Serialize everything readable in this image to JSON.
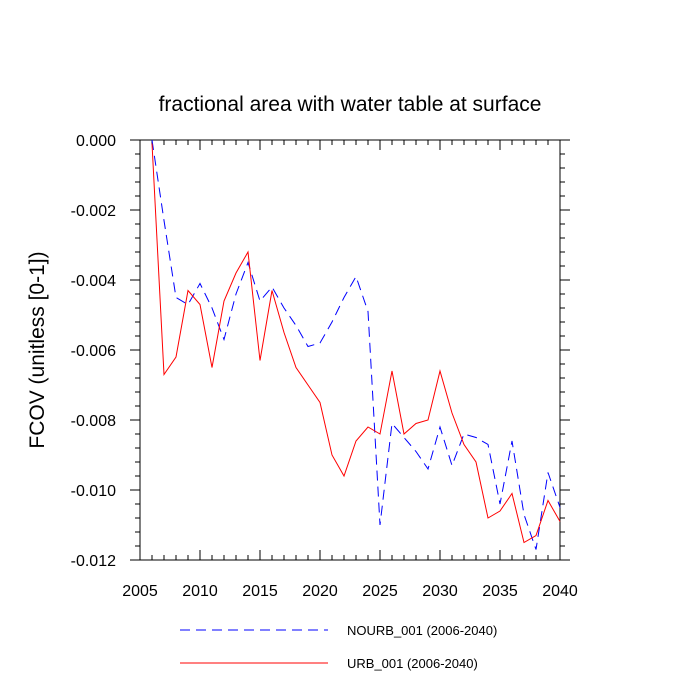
{
  "chart_data": {
    "type": "line",
    "title": "fractional area with water table at surface",
    "xlabel": "",
    "ylabel": "FCOV  (unitless [0-1])",
    "xlim": [
      2005,
      2040
    ],
    "ylim": [
      -0.012,
      0.0
    ],
    "x_ticks": [
      2005,
      2010,
      2015,
      2020,
      2025,
      2030,
      2035,
      2040
    ],
    "x_tick_labels": [
      "2005",
      "2010",
      "2015",
      "2020",
      "2025",
      "2030",
      "2035",
      "2040"
    ],
    "y_ticks": [
      0.0,
      -0.002,
      -0.004,
      -0.006,
      -0.008,
      -0.01,
      -0.012
    ],
    "y_tick_labels": [
      "0.000",
      "-0.002",
      "-0.004",
      "-0.006",
      "-0.008",
      "-0.010",
      "-0.012"
    ],
    "legend_position": "bottom",
    "x": [
      2006,
      2007,
      2008,
      2009,
      2010,
      2011,
      2012,
      2013,
      2014,
      2015,
      2016,
      2017,
      2018,
      2019,
      2020,
      2021,
      2022,
      2023,
      2024,
      2025,
      2026,
      2027,
      2028,
      2029,
      2030,
      2031,
      2032,
      2033,
      2034,
      2035,
      2036,
      2037,
      2038,
      2039,
      2040
    ],
    "series": [
      {
        "name": "NOURB_001 (2006-2040)",
        "color": "#0000ff",
        "style": "dashed",
        "values": [
          0.0,
          -0.0023,
          -0.0045,
          -0.0047,
          -0.0041,
          -0.0048,
          -0.0057,
          -0.0044,
          -0.0035,
          -0.0046,
          -0.0042,
          -0.0048,
          -0.0053,
          -0.0059,
          -0.0058,
          -0.0052,
          -0.0045,
          -0.0039,
          -0.0049,
          -0.011,
          -0.0081,
          -0.0085,
          -0.0089,
          -0.0094,
          -0.0082,
          -0.0093,
          -0.0084,
          -0.0085,
          -0.0087,
          -0.0104,
          -0.0086,
          -0.0107,
          -0.0117,
          -0.0095,
          -0.0105
        ]
      },
      {
        "name": "URB_001 (2006-2040)",
        "color": "#ff0000",
        "style": "solid",
        "values": [
          -0.0001,
          -0.0067,
          -0.0062,
          -0.0043,
          -0.0047,
          -0.0065,
          -0.0046,
          -0.0038,
          -0.0032,
          -0.0063,
          -0.0043,
          -0.0055,
          -0.0065,
          -0.007,
          -0.0075,
          -0.009,
          -0.0096,
          -0.0086,
          -0.0082,
          -0.0084,
          -0.0066,
          -0.0084,
          -0.0081,
          -0.008,
          -0.0066,
          -0.0078,
          -0.0087,
          -0.0092,
          -0.0108,
          -0.0106,
          -0.0101,
          -0.0115,
          -0.0113,
          -0.0103,
          -0.0109
        ]
      }
    ]
  }
}
